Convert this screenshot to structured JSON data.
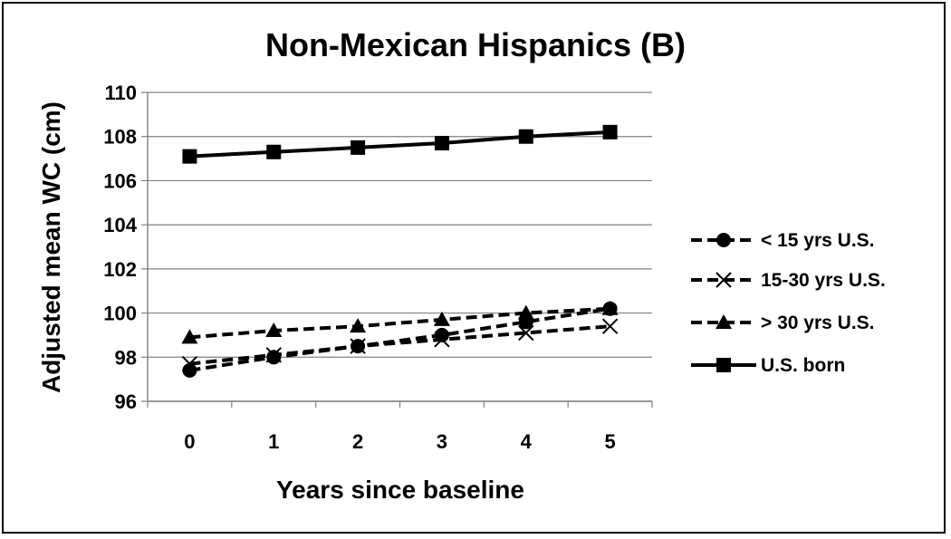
{
  "chart_data": {
    "type": "line",
    "title": "Non-Mexican Hispanics (B)",
    "xlabel": "Years since baseline",
    "ylabel": "Adjusted mean WC (cm)",
    "x": [
      0,
      1,
      2,
      3,
      4,
      5
    ],
    "ylim": [
      96,
      110
    ],
    "yticks": [
      96,
      98,
      100,
      102,
      104,
      106,
      108,
      110
    ],
    "grid": "horizontal",
    "legend_position": "right",
    "series": [
      {
        "name": "< 15 yrs U.S.",
        "marker": "circle",
        "line_style": "dashed",
        "values": [
          97.4,
          98.0,
          98.5,
          99.0,
          99.6,
          100.2
        ]
      },
      {
        "name": "15-30 yrs U.S.",
        "marker": "x",
        "line_style": "dashed",
        "values": [
          97.7,
          98.1,
          98.5,
          98.8,
          99.1,
          99.4
        ]
      },
      {
        "name": "> 30 yrs U.S.",
        "marker": "triangle",
        "line_style": "dashed",
        "values": [
          98.9,
          99.2,
          99.4,
          99.7,
          100.0,
          100.2
        ]
      },
      {
        "name": "U.S. born",
        "marker": "square",
        "line_style": "solid",
        "values": [
          107.1,
          107.3,
          107.5,
          107.7,
          108.0,
          108.2
        ]
      }
    ],
    "colors": {
      "line": "#000000",
      "grid": "#808080",
      "background": "#ffffff"
    }
  }
}
